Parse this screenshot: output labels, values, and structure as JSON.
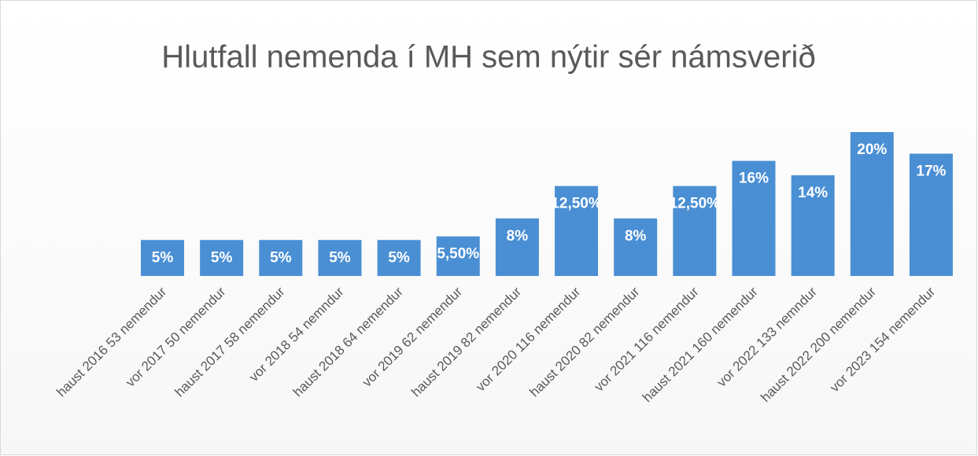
{
  "chart_data": {
    "type": "bar",
    "title": "Hlutfall nemenda í MH sem nýtir sér námsverið",
    "categories": [
      "haust 2016 53 nemendur",
      "vor 2017 50 nemendur",
      "haust 2017 58 nemendur",
      "vor 2018 54 nemndur",
      "haust 2018 64 nemendur",
      "vor 2019 62 nemendur",
      "haust 2019 82 nemendur",
      "vor 2020 116 nemendur",
      "haust 2020 82 nemendur",
      "vor 2021 116 nemendur",
      "haust 2021 160 nemendur",
      "vor 2022 133 nemndur",
      "haust 2022 200 nemendur",
      "vor 2023 154 nemendur"
    ],
    "values": [
      5,
      5,
      5,
      5,
      5,
      5.5,
      8,
      12.5,
      8,
      12.5,
      16,
      14,
      20,
      17
    ],
    "value_labels": [
      "5%",
      "5%",
      "5%",
      "5%",
      "5%",
      "5,50%",
      "8%",
      "12,50%",
      "8%",
      "12,50%",
      "16%",
      "14%",
      "20%",
      "17%"
    ],
    "color": "#4a8fd4"
  }
}
